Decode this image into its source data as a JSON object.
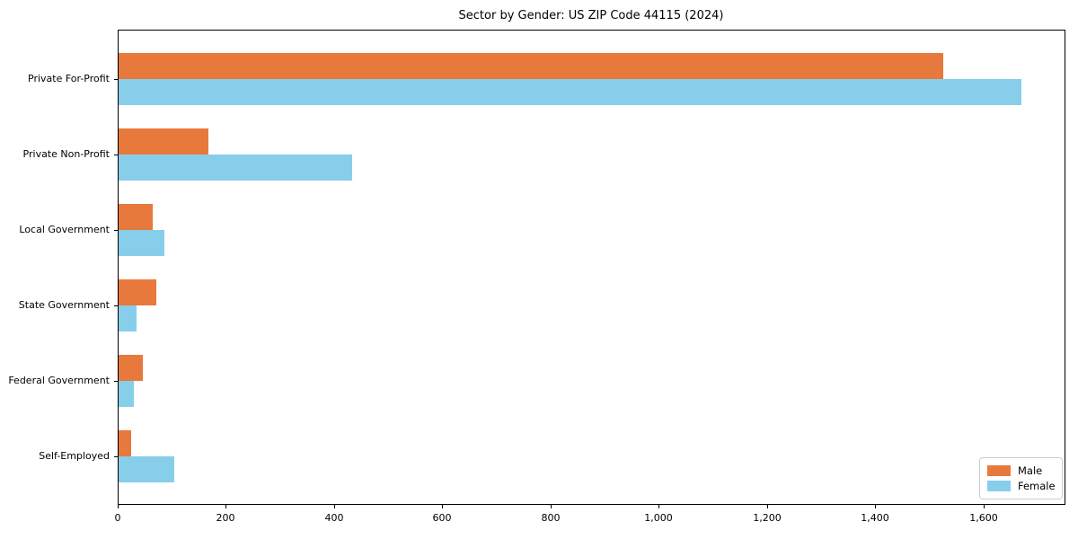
{
  "chart_data": {
    "type": "bar",
    "orientation": "horizontal",
    "title": "Sector by Gender: US ZIP Code 44115 (2024)",
    "categories": [
      "Private For-Profit",
      "Private Non-Profit",
      "Local Government",
      "State Government",
      "Federal Government",
      "Self-Employed"
    ],
    "series": [
      {
        "name": "Male",
        "color": "#e8793c",
        "values": [
          1524,
          166,
          63,
          69,
          44,
          23
        ]
      },
      {
        "name": "Female",
        "color": "#87ceeb",
        "values": [
          1668,
          432,
          85,
          34,
          29,
          103
        ]
      }
    ],
    "xlabel": "",
    "ylabel": "",
    "xlim": [
      0,
      1750
    ],
    "xticks": [
      0,
      200,
      400,
      600,
      800,
      1000,
      1200,
      1400,
      1600
    ],
    "xtick_labels": [
      "0",
      "200",
      "400",
      "600",
      "800",
      "1,000",
      "1,200",
      "1,400",
      "1,600"
    ],
    "grid": false,
    "legend_position": "lower right",
    "background_color": "#ffffff",
    "axis_color": "#000000"
  }
}
